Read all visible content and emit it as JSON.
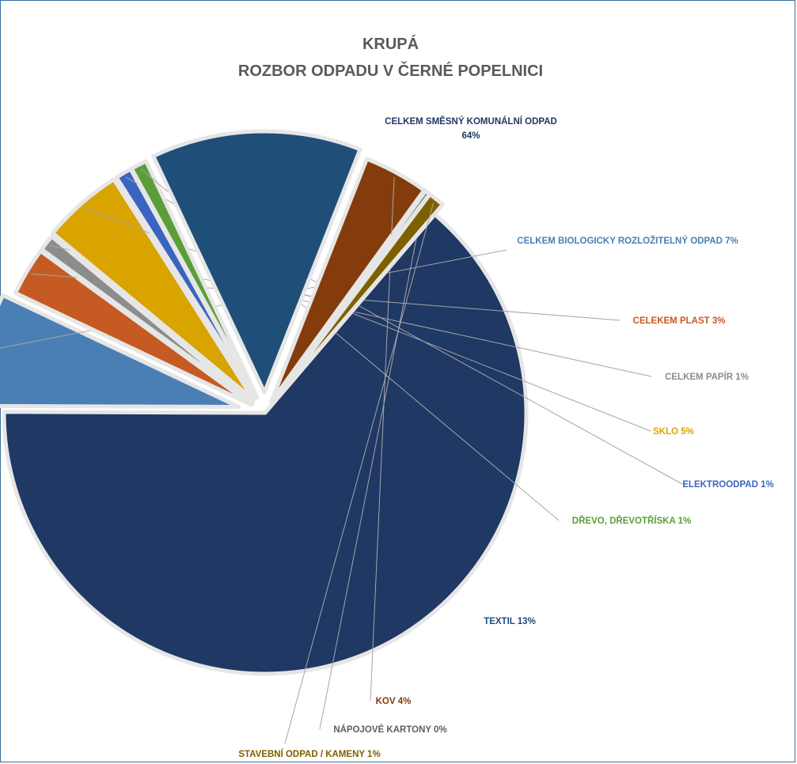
{
  "chart_data": {
    "type": "pie",
    "title": "KRUPÁ",
    "subtitle": "ROZBOR ODPADU V ČERNÉ POPELNICI",
    "slices": [
      {
        "name": "CELKEM SMĚSNÝ KOMUNÁLNÍ ODPAD",
        "value": 64,
        "label": "64%",
        "color": "#1f3864"
      },
      {
        "name": "CELKEM BIOLOGICKY ROZLOŽITELNÝ ODPAD",
        "value": 7,
        "label": "7%",
        "color": "#4a7fb5"
      },
      {
        "name": "CELEKEM PLAST",
        "value": 3,
        "label": "3%",
        "color": "#c55a22"
      },
      {
        "name": "CELKEM PAPÍR",
        "value": 1,
        "label": "1%",
        "color": "#8c8c8c"
      },
      {
        "name": "SKLO",
        "value": 5,
        "label": "5%",
        "color": "#d9a300"
      },
      {
        "name": "ELEKTROODPAD",
        "value": 1,
        "label": "1%",
        "color": "#3b64c0"
      },
      {
        "name": "DŘEVO, DŘEVOTŘÍSKA",
        "value": 1,
        "label": "1%",
        "color": "#5a9e3a"
      },
      {
        "name": "TEXTIL",
        "value": 13,
        "label": "13%",
        "color": "#1f4e79"
      },
      {
        "name": "KOV",
        "value": 4,
        "label": "4%",
        "color": "#843c0c"
      },
      {
        "name": "NÁPOJOVÉ KARTONY",
        "value": 0.3,
        "label": "0%",
        "color": "#5f5f5f"
      },
      {
        "name": "STAVEBNÍ ODPAD / KAMENY",
        "value": 1,
        "label": "1%",
        "color": "#7f6000"
      }
    ],
    "start_angle_deg": 40.5,
    "legend": "none"
  }
}
